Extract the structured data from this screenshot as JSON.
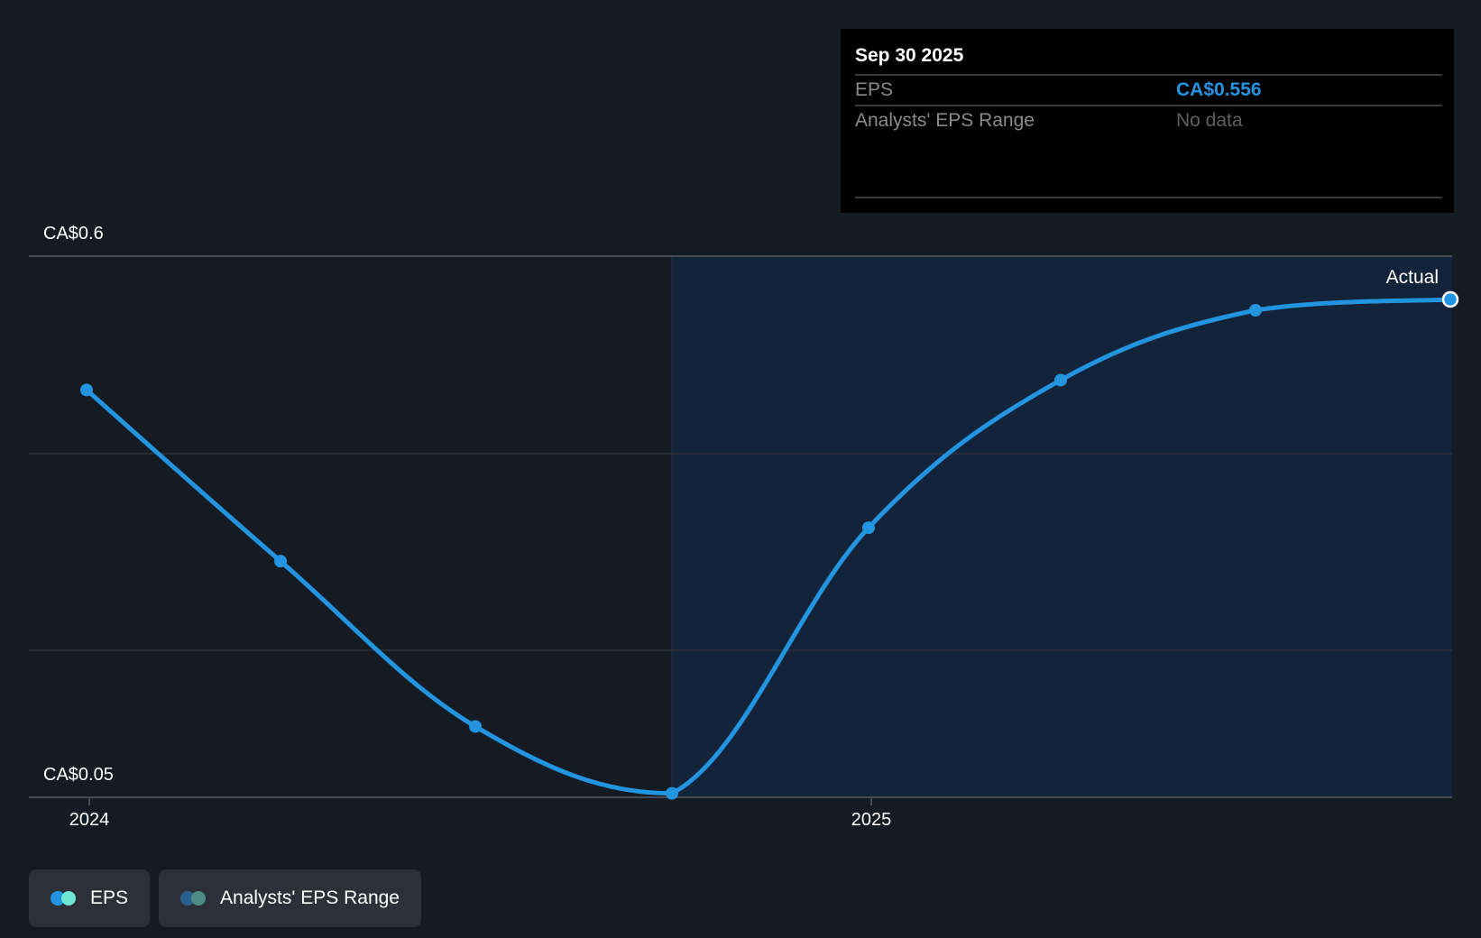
{
  "tooltip": {
    "date": "Sep 30 2025",
    "rows": [
      {
        "label": "EPS",
        "value": "CA$0.556"
      },
      {
        "label": "Analysts' EPS Range",
        "value": "No data"
      }
    ]
  },
  "axis": {
    "y_top_label": "CA$0.6",
    "y_bottom_label": "CA$0.05",
    "x_labels": [
      "2024",
      "2025"
    ]
  },
  "actual_label": "Actual",
  "legend": [
    {
      "label": "EPS",
      "colors": [
        "#2394df",
        "#6ee6d4"
      ]
    },
    {
      "label": "Analysts' EPS Range",
      "colors": [
        "#27628f",
        "#4f8e87"
      ]
    }
  ],
  "colors": {
    "background": "#151b23",
    "forecast_shade": "#13243a",
    "line": "#2394df",
    "gridline": "#2c323b",
    "axis": "#474b55"
  },
  "chart_data": {
    "type": "line",
    "title": "",
    "xlabel": "",
    "ylabel": "EPS",
    "ylim": [
      0.05,
      0.6
    ],
    "x_ticks": [
      "2024",
      "2025"
    ],
    "grid": true,
    "legend_position": "bottom-left",
    "series": [
      {
        "name": "EPS",
        "x": [
          "Dec 2023",
          "Mar 2024",
          "Jun 2024",
          "Sep 2024",
          "Dec 2024",
          "Mar 2025",
          "Jun 2025",
          "Sep 2025"
        ],
        "values": [
          0.464,
          0.29,
          0.122,
          0.054,
          0.324,
          0.474,
          0.545,
          0.556
        ]
      },
      {
        "name": "Analysts' EPS Range",
        "values": []
      }
    ],
    "annotations": [
      "Actual"
    ],
    "highlight": {
      "date": "Sep 30 2025",
      "EPS": "CA$0.556",
      "Analysts' EPS Range": "No data"
    }
  }
}
